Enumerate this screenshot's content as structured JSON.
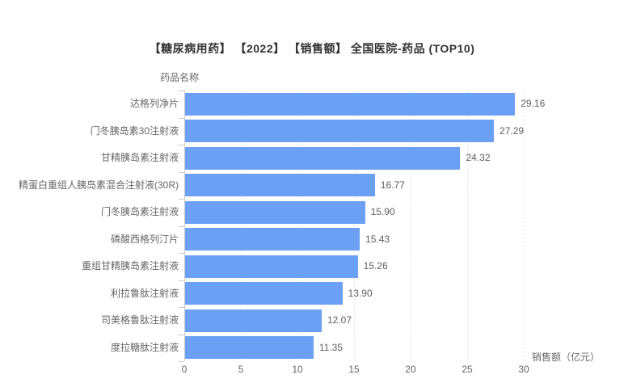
{
  "header": {
    "title": "【糖尿病用药】 【2022】 【销售额】 全国医院-药品 (TOP10)"
  },
  "axes": {
    "y_name": "药品名称",
    "x_name": "销售额（亿元）"
  },
  "colors": {
    "bar": "#6ca0f4",
    "title_text": "#333333",
    "label_text": "#666666",
    "value_text": "#5e5e5e",
    "axis_line": "#cccccc",
    "grid_line": "#e2e8f0"
  },
  "chart_data": {
    "type": "bar",
    "orientation": "horizontal",
    "title": "【糖尿病用药】 【2022】 【销售额】 全国医院-药品 (TOP10)",
    "xlabel": "销售额（亿元）",
    "ylabel": "药品名称",
    "xlim": [
      0,
      30
    ],
    "x_ticks": [
      0,
      5,
      10,
      15,
      20,
      25,
      30
    ],
    "grid": "vertical dashed gridlines at each x tick",
    "legend": "none",
    "bar_color": "#6ca0f4",
    "categories": [
      "达格列净片",
      "门冬胰岛素30注射液",
      "甘精胰岛素注射液",
      "精蛋白重组人胰岛素混合注射液(30R)",
      "门冬胰岛素注射液",
      "磷酸西格列汀片",
      "重组甘精胰岛素注射液",
      "利拉鲁肽注射液",
      "司美格鲁肽注射液",
      "度拉糖肽注射液"
    ],
    "values": [
      29.16,
      27.29,
      24.32,
      16.77,
      15.9,
      15.43,
      15.26,
      13.9,
      12.07,
      11.35
    ],
    "value_labels": [
      "29.16",
      "27.29",
      "24.32",
      "16.77",
      "15.90",
      "15.43",
      "15.26",
      "13.90",
      "12.07",
      "11.35"
    ]
  }
}
